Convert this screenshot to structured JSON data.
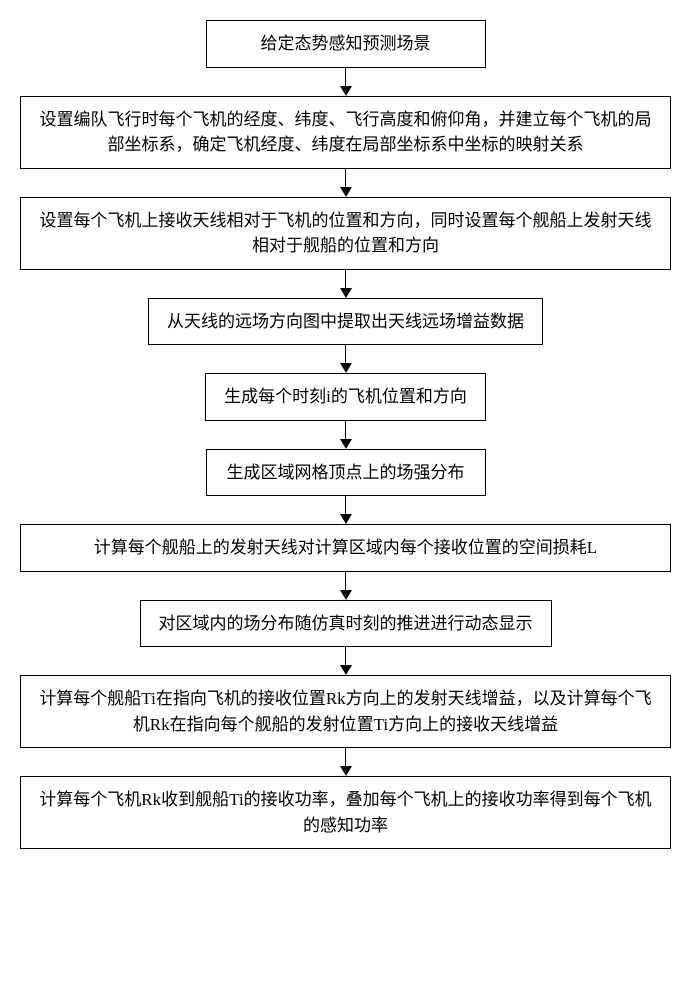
{
  "flowchart": {
    "type": "flowchart",
    "direction": "top-to-bottom",
    "background_color": "#ffffff",
    "border_color": "#000000",
    "text_color": "#000000",
    "font_size": 17,
    "arrow_gap": 28,
    "steps": [
      {
        "text": "给定态势感知预测场景",
        "width": "small"
      },
      {
        "text": "设置编队飞行时每个飞机的经度、纬度、飞行高度和俯仰角，并建立每个飞机的局部坐标系，确定飞机经度、纬度在局部坐标系中坐标的映射关系",
        "width": "wide"
      },
      {
        "text": "设置每个飞机上接收天线相对于飞机的位置和方向，同时设置每个舰船上发射天线相对于舰船的位置和方向",
        "width": "wide"
      },
      {
        "text": "从天线的远场方向图中提取出天线远场增益数据",
        "width": "small"
      },
      {
        "text": "生成每个时刻i的飞机位置和方向",
        "width": "small"
      },
      {
        "text": "生成区域网格顶点上的场强分布",
        "width": "small"
      },
      {
        "text": "计算每个舰船上的发射天线对计算区域内每个接收位置的空间损耗L",
        "width": "wide"
      },
      {
        "text": "对区域内的场分布随仿真时刻的推进进行动态显示",
        "width": "small"
      },
      {
        "text": "计算每个舰船Ti在指向飞机的接收位置Rk方向上的发射天线增益，以及计算每个飞机Rk在指向每个舰船的发射位置Ti方向上的接收天线增益",
        "width": "wide"
      },
      {
        "text": "计算每个飞机Rk收到舰船Ti的接收功率，叠加每个飞机上的接收功率得到每个飞机的感知功率",
        "width": "wide"
      }
    ]
  }
}
